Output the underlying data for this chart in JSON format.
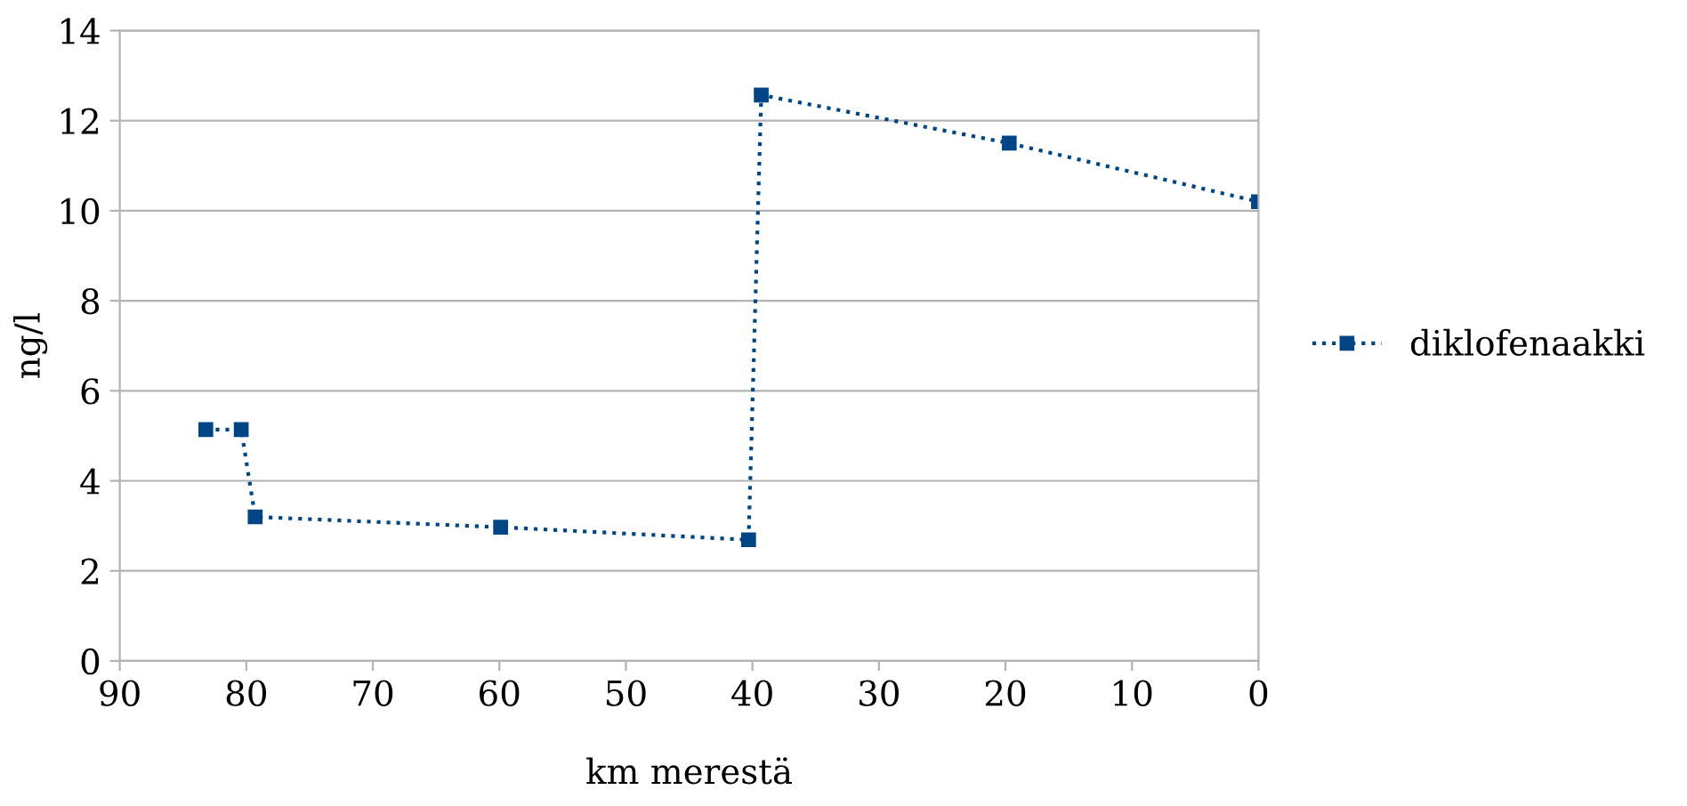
{
  "chart_data": {
    "type": "line",
    "xlabel": "km merestä",
    "ylabel": "ng/l",
    "series": [
      {
        "name": "diklofenaakki",
        "color": "#004586",
        "x": [
          83.2,
          80.4,
          79.3,
          59.9,
          40.3,
          39.3,
          19.7,
          0
        ],
        "values": [
          5.14,
          5.14,
          3.2,
          2.97,
          2.69,
          12.57,
          11.5,
          10.2
        ]
      }
    ],
    "xlim": [
      90,
      0
    ],
    "xticks": [
      90,
      80,
      70,
      60,
      50,
      40,
      30,
      20,
      10,
      0
    ],
    "ylim": [
      0,
      14
    ],
    "yticks": [
      0,
      2,
      4,
      6,
      8,
      10,
      12,
      14
    ],
    "grid": "y",
    "legend": "right",
    "marker": "square",
    "line_style": "dotted"
  }
}
